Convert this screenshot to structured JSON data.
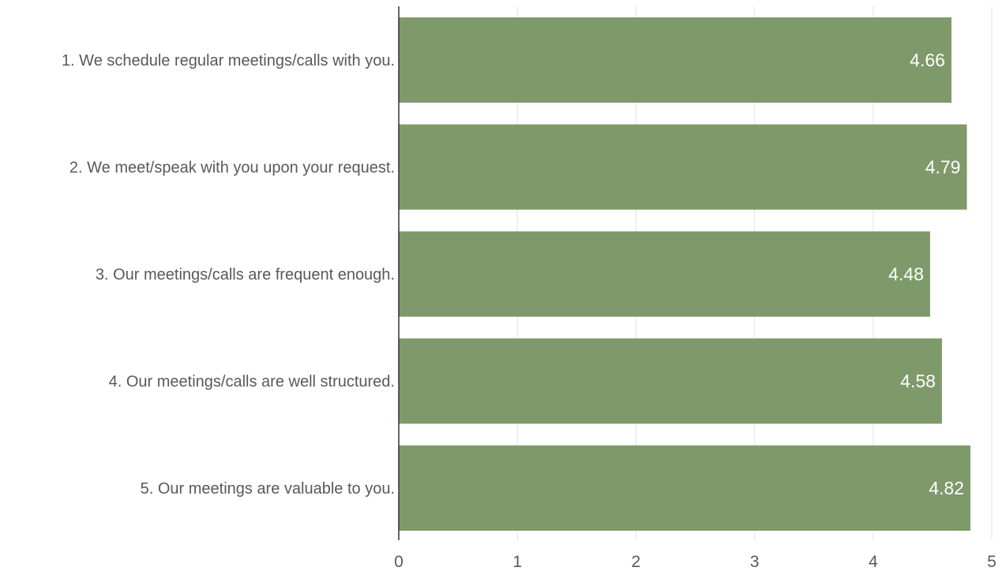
{
  "chart_data": {
    "type": "bar",
    "orientation": "horizontal",
    "categories": [
      "1. We schedule regular meetings/calls with you.",
      "2. We meet/speak with you upon your request.",
      "3. Our meetings/calls are frequent enough.",
      "4. Our meetings/calls are well structured.",
      "5. Our meetings are valuable to you."
    ],
    "values": [
      4.66,
      4.79,
      4.48,
      4.58,
      4.82
    ],
    "value_labels": [
      "4.66",
      "4.79",
      "4.48",
      "4.58",
      "4.82"
    ],
    "title": "",
    "xlabel": "",
    "ylabel": "",
    "xlim": [
      0,
      5
    ],
    "x_ticks": [
      "0",
      "1",
      "2",
      "3",
      "4",
      "5"
    ],
    "grid": true,
    "legend": "none",
    "colors": {
      "bar": "#7f9a6a",
      "gridline": "#e3e3e3",
      "axis": "#333333",
      "label_text": "#595959",
      "value_text": "#ffffff"
    }
  }
}
